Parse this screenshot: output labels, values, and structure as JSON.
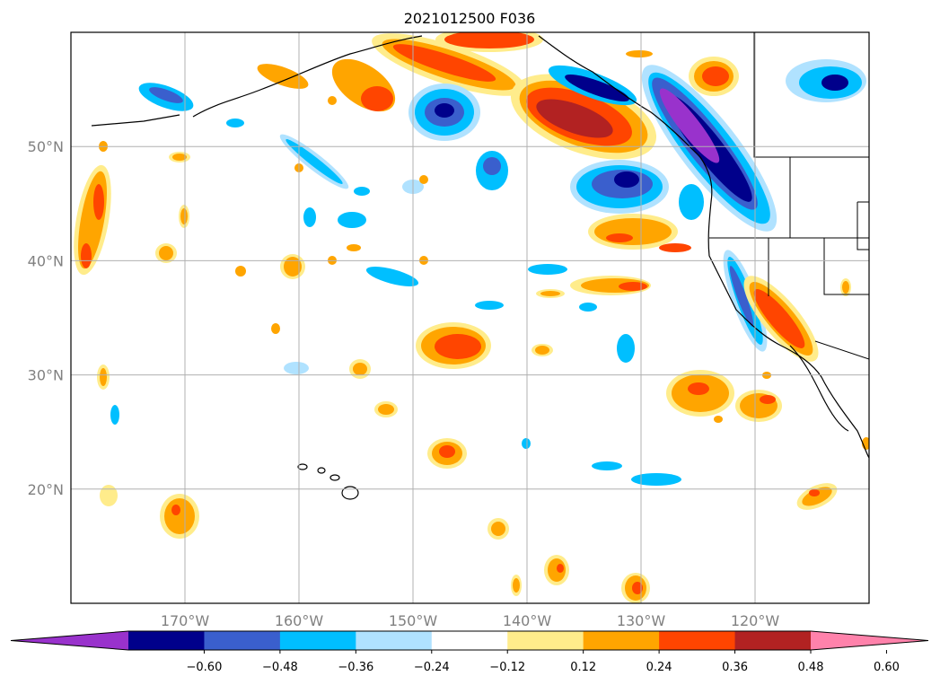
{
  "title": "2021012500 F036",
  "map": {
    "lon_range": [
      -180,
      -110
    ],
    "lat_range": [
      10,
      60
    ],
    "lat_ticks": [
      {
        "value": 20,
        "label": "20°N"
      },
      {
        "value": 30,
        "label": "30°N"
      },
      {
        "value": 40,
        "label": "40°N"
      },
      {
        "value": 50,
        "label": "50°N"
      }
    ],
    "lon_ticks": [
      {
        "value": -170,
        "label": "170°W"
      },
      {
        "value": -160,
        "label": "160°W"
      },
      {
        "value": -150,
        "label": "150°W"
      },
      {
        "value": -140,
        "label": "140°W"
      },
      {
        "value": -130,
        "label": "130°W"
      },
      {
        "value": -120,
        "label": "120°W"
      }
    ],
    "grid": true
  },
  "colorbar": {
    "extend": "both",
    "colors": [
      "#9932CC",
      "#00008B",
      "#3A5FCD",
      "#00BFFF",
      "#B0E2FF",
      "#FFFFFF",
      "#FFEC8B",
      "#FFA500",
      "#FF4500",
      "#B22222",
      "#FF82AB"
    ],
    "tick_labels": [
      "−0.60",
      "−0.48",
      "−0.36",
      "−0.24",
      "−0.12",
      "0.12",
      "0.24",
      "0.36",
      "0.48",
      "0.60"
    ]
  }
}
